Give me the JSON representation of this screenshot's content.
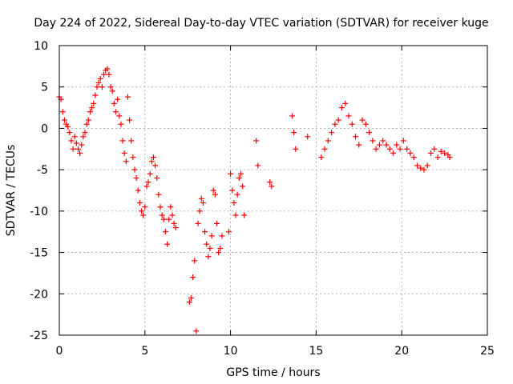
{
  "chart_data": {
    "type": "scatter",
    "title": "Day 224 of 2022, Sidereal Day-to-day VTEC variation (SDTVAR) for receiver kuge",
    "xlabel": "GPS time / hours",
    "ylabel": "SDTVAR / TECUs",
    "xlim": [
      0,
      25
    ],
    "ylim": [
      -25,
      10
    ],
    "xticks": [
      "0",
      "5",
      "10",
      "15",
      "20",
      "25"
    ],
    "yticks": [
      "10",
      "5",
      "0",
      "-5",
      "-10",
      "-15",
      "-20",
      "-25"
    ],
    "grid": true,
    "marker": "plus",
    "color": "#ff0000",
    "series": [
      {
        "name": "SDTVAR",
        "x": [
          0.0,
          0.1,
          0.2,
          0.3,
          0.4,
          0.5,
          0.6,
          0.7,
          0.8,
          0.9,
          1.0,
          1.1,
          1.2,
          1.3,
          1.4,
          1.5,
          1.6,
          1.7,
          1.8,
          1.9,
          2.0,
          2.1,
          2.2,
          2.3,
          2.4,
          2.5,
          2.6,
          2.7,
          2.8,
          2.9,
          3.0,
          3.1,
          3.2,
          3.3,
          3.4,
          3.5,
          3.6,
          3.7,
          3.8,
          3.9,
          4.0,
          4.1,
          4.2,
          4.3,
          4.4,
          4.5,
          4.6,
          4.7,
          4.8,
          4.9,
          5.0,
          5.1,
          5.2,
          5.3,
          5.4,
          5.5,
          5.6,
          5.7,
          5.8,
          5.9,
          6.0,
          6.1,
          6.2,
          6.3,
          6.4,
          6.5,
          6.6,
          6.7,
          6.8,
          7.6,
          7.7,
          7.8,
          7.9,
          8.0,
          8.1,
          8.2,
          8.3,
          8.4,
          8.5,
          8.6,
          8.7,
          8.8,
          8.9,
          9.0,
          9.1,
          9.2,
          9.3,
          9.4,
          9.5,
          9.9,
          10.0,
          10.1,
          10.2,
          10.3,
          10.4,
          10.5,
          10.6,
          10.7,
          10.8,
          11.5,
          11.6,
          12.3,
          12.4,
          13.6,
          13.7,
          13.8,
          14.5,
          15.3,
          15.5,
          15.7,
          15.9,
          16.1,
          16.3,
          16.5,
          16.7,
          16.9,
          17.1,
          17.3,
          17.5,
          17.7,
          17.9,
          18.1,
          18.3,
          18.5,
          18.7,
          18.9,
          19.1,
          19.3,
          19.5,
          19.7,
          19.9,
          20.1,
          20.3,
          20.5,
          20.7,
          20.9,
          21.1,
          21.3,
          21.5,
          21.7,
          21.9,
          22.1,
          22.3,
          22.5,
          22.7,
          22.8
        ],
        "y": [
          3.8,
          3.5,
          2.0,
          1.0,
          0.5,
          0.2,
          -0.5,
          -1.5,
          -2.5,
          -1.0,
          -1.8,
          -2.5,
          -3.0,
          -2.0,
          -1.0,
          -0.5,
          0.5,
          1.0,
          2.0,
          2.5,
          3.0,
          4.0,
          5.0,
          5.5,
          6.0,
          5.0,
          6.5,
          7.0,
          7.2,
          6.5,
          5.0,
          4.5,
          3.0,
          2.0,
          3.5,
          1.5,
          0.5,
          -1.5,
          -3.0,
          -4.0,
          3.8,
          1.0,
          -1.5,
          -3.5,
          -5.0,
          -6.0,
          -7.5,
          -9.0,
          -10.0,
          -10.5,
          -9.5,
          -7.0,
          -6.5,
          -5.5,
          -4.0,
          -3.5,
          -4.5,
          -6.0,
          -8.0,
          -9.5,
          -10.5,
          -11.0,
          -12.5,
          -14.0,
          -11.0,
          -9.5,
          -10.5,
          -11.5,
          -12.0,
          -21.0,
          -20.5,
          -18.0,
          -16.0,
          -24.5,
          -11.5,
          -10.0,
          -8.5,
          -9.0,
          -12.5,
          -14.0,
          -15.5,
          -14.5,
          -13.0,
          -7.5,
          -8.0,
          -11.5,
          -15.0,
          -14.5,
          -13.0,
          -12.5,
          -5.5,
          -7.5,
          -9.0,
          -10.5,
          -8.0,
          -6.0,
          -5.5,
          -7.0,
          -10.5,
          -1.5,
          -4.5,
          -6.5,
          -7.0,
          1.5,
          -0.5,
          -2.5,
          -1.0,
          -3.5,
          -2.5,
          -1.5,
          -0.5,
          0.5,
          1.0,
          2.5,
          3.0,
          1.5,
          0.5,
          -1.0,
          -2.0,
          1.0,
          0.5,
          -0.5,
          -1.5,
          -2.5,
          -2.0,
          -1.5,
          -2.0,
          -2.5,
          -3.0,
          -2.0,
          -2.5,
          -1.5,
          -2.5,
          -3.0,
          -3.5,
          -4.5,
          -4.8,
          -5.0,
          -4.5,
          -3.0,
          -2.5,
          -3.5,
          -2.8,
          -3.0,
          -3.2,
          -3.5
        ]
      }
    ]
  }
}
